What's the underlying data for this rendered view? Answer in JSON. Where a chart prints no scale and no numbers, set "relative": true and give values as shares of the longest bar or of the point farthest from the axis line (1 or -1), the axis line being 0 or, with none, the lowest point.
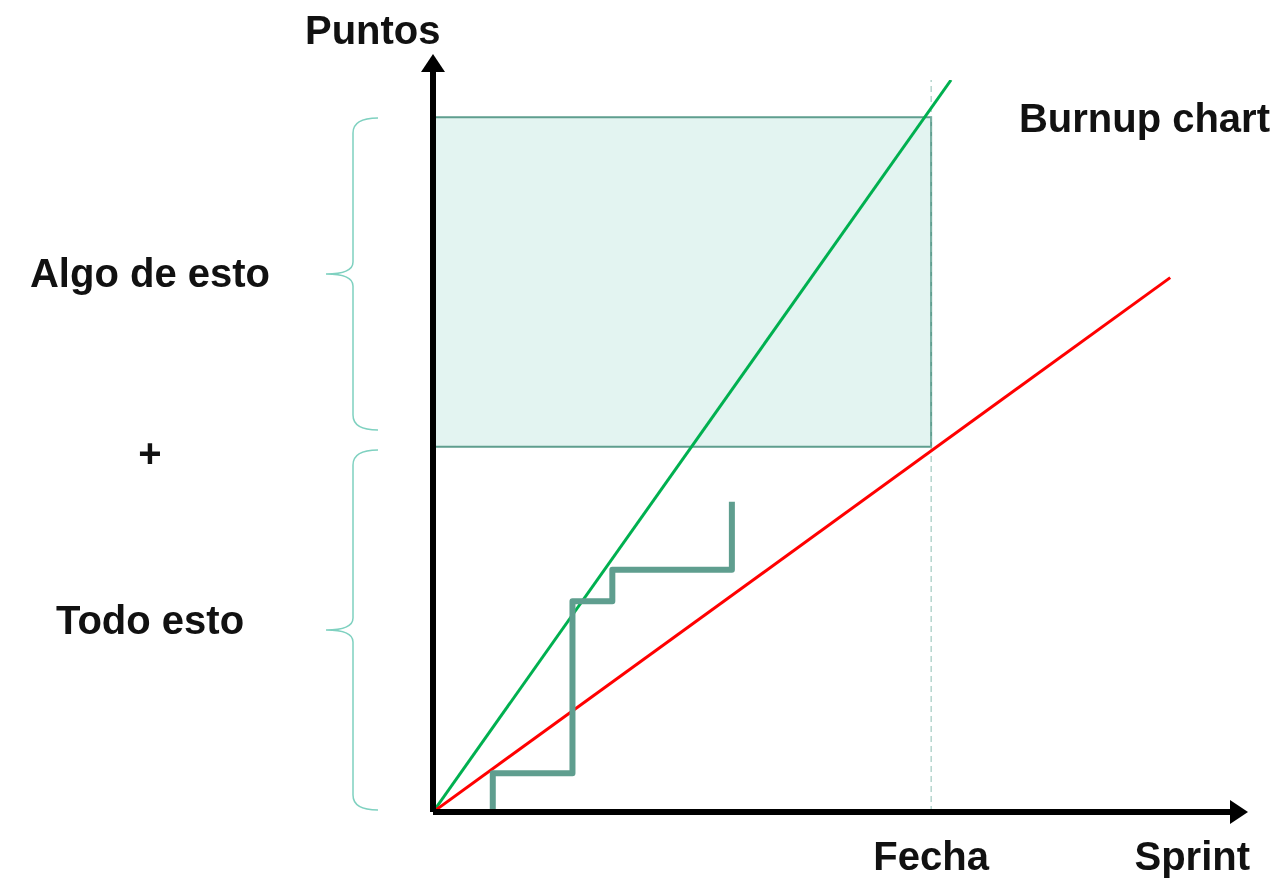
{
  "chart_data": {
    "type": "line",
    "title": "Burnup chart",
    "xlabel": "Sprint",
    "ylabel": "Puntos",
    "relative": true,
    "categories": [
      null,
      null,
      null,
      null,
      null,
      null,
      null,
      null,
      null,
      null,
      null,
      null,
      null,
      null,
      null,
      null,
      null,
      null,
      null,
      null,
      null,
      null,
      null,
      null,
      null,
      null,
      null,
      null,
      null,
      null,
      null,
      null,
      null,
      null,
      null,
      null,
      null,
      null,
      null,
      null,
      null
    ],
    "series": [
      {
        "color": "#00b050",
        "values": [
          0,
          null,
          null,
          null,
          null,
          null,
          null,
          null,
          null,
          null,
          null,
          null,
          null,
          null,
          null,
          null,
          null,
          null,
          null,
          null,
          null,
          null,
          null,
          null,
          null,
          null,
          1,
          null,
          null,
          null,
          null,
          null,
          null,
          null,
          null,
          null,
          null,
          null,
          null,
          null,
          null
        ]
      },
      {
        "color": "#ff0000",
        "values": [
          0,
          null,
          null,
          null,
          null,
          null,
          null,
          null,
          null,
          null,
          null,
          null,
          null,
          null,
          null,
          null,
          null,
          null,
          null,
          null,
          null,
          null,
          null,
          null,
          null,
          null,
          null,
          null,
          null,
          null,
          null,
          null,
          null,
          null,
          null,
          null,
          null,
          0.73,
          null,
          null,
          null
        ]
      },
      {
        "type": "step",
        "color": "#5f9e8f",
        "values": [
          0,
          null,
          null,
          0.053,
          null,
          null,
          null,
          0.288,
          null,
          0.331,
          null,
          null,
          null,
          null,
          null,
          0.424,
          null,
          null,
          null,
          null,
          null,
          null,
          null,
          null,
          null,
          null,
          null,
          null,
          null,
          null,
          null,
          null,
          null,
          null,
          null,
          null,
          null,
          null,
          null,
          null,
          null
        ]
      }
    ],
    "bands": [
      {
        "axis": "y",
        "from": 0.499,
        "to": 0.949,
        "color": "#e3f4f1"
      }
    ],
    "annotations": [
      "Algo de esto",
      "+",
      "Todo esto",
      "Fecha"
    ],
    "marker": "none"
  }
}
